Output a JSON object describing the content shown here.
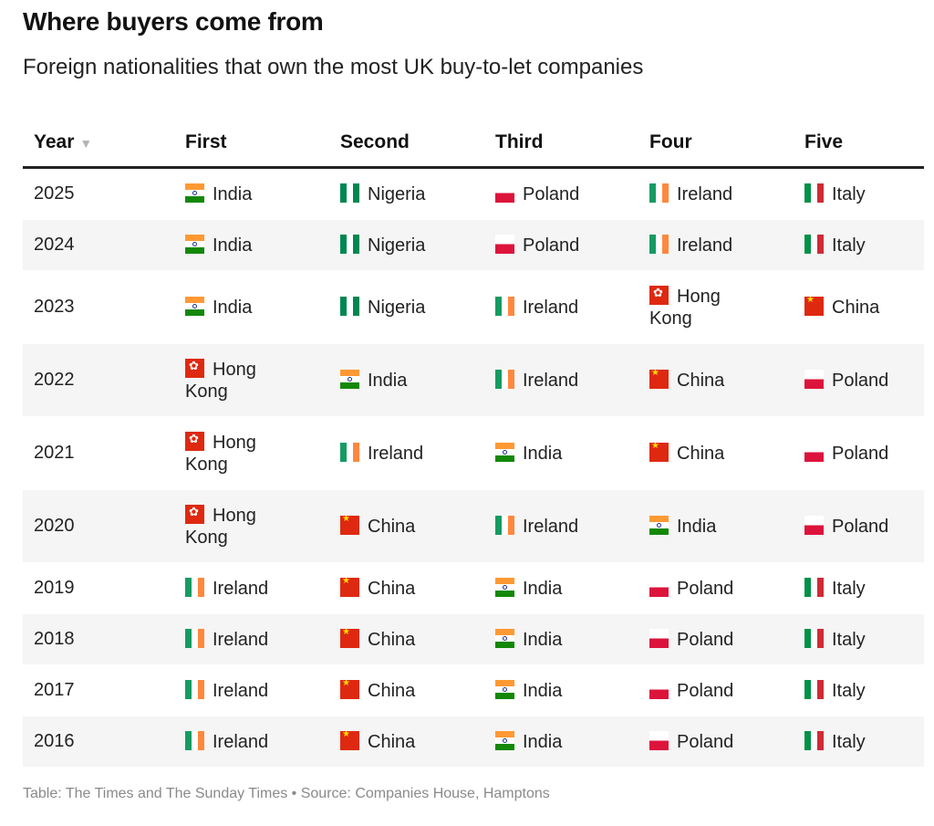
{
  "title": "Where buyers come from",
  "subtitle": "Foreign nationalities that own the most UK buy-to-let companies",
  "source": "Table: The Times and The Sunday Times • Source: Companies House, Hamptons",
  "chart_data": {
    "type": "table",
    "columns": [
      "Year",
      "First",
      "Second",
      "Third",
      "Four",
      "Five"
    ],
    "sort_indicator": "▼",
    "rows": [
      {
        "year": "2025",
        "values": [
          "India",
          "Nigeria",
          "Poland",
          "Ireland",
          "Italy"
        ]
      },
      {
        "year": "2024",
        "values": [
          "India",
          "Nigeria",
          "Poland",
          "Ireland",
          "Italy"
        ]
      },
      {
        "year": "2023",
        "values": [
          "India",
          "Nigeria",
          "Ireland",
          "Hong Kong",
          "China"
        ]
      },
      {
        "year": "2022",
        "values": [
          "Hong Kong",
          "India",
          "Ireland",
          "China",
          "Poland"
        ]
      },
      {
        "year": "2021",
        "values": [
          "Hong Kong",
          "Ireland",
          "India",
          "China",
          "Poland"
        ]
      },
      {
        "year": "2020",
        "values": [
          "Hong Kong",
          "China",
          "Ireland",
          "India",
          "Poland"
        ]
      },
      {
        "year": "2019",
        "values": [
          "Ireland",
          "China",
          "India",
          "Poland",
          "Italy"
        ]
      },
      {
        "year": "2018",
        "values": [
          "Ireland",
          "China",
          "India",
          "Poland",
          "Italy"
        ]
      },
      {
        "year": "2017",
        "values": [
          "Ireland",
          "China",
          "India",
          "Poland",
          "Italy"
        ]
      },
      {
        "year": "2016",
        "values": [
          "Ireland",
          "China",
          "India",
          "Poland",
          "Italy"
        ]
      }
    ]
  }
}
